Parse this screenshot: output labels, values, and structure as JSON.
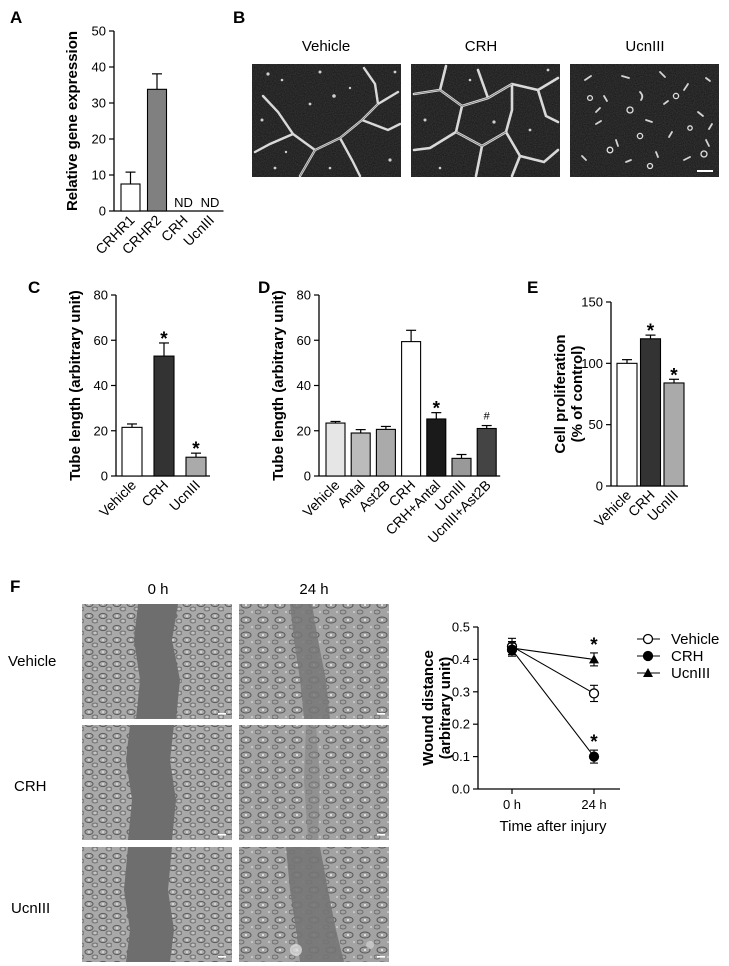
{
  "panels": {
    "A": {
      "letter": "A"
    },
    "B": {
      "letter": "B",
      "images": [
        "Vehicle",
        "CRH",
        "UcnIII"
      ]
    },
    "C": {
      "letter": "C"
    },
    "D": {
      "letter": "D"
    },
    "E": {
      "letter": "E"
    },
    "F": {
      "letter": "F",
      "columns": [
        "0 h",
        "24 h"
      ],
      "rows": [
        "Vehicle",
        "CRH",
        "UcnIII"
      ]
    }
  },
  "chart_data": [
    {
      "id": "A",
      "type": "bar",
      "ylabel": "Relative gene expression",
      "ylim": [
        0,
        50
      ],
      "yticks": [
        0,
        10,
        20,
        30,
        40,
        50
      ],
      "categories": [
        "CRHR1",
        "CRHR2",
        "CRH",
        "UcnIII"
      ],
      "values": [
        7.5,
        33.8,
        null,
        null
      ],
      "errors": [
        3.3,
        4.3,
        null,
        null
      ],
      "fills": [
        "#ffffff",
        "#808080",
        "#ffffff",
        "#ffffff"
      ],
      "annotations": [
        "",
        "",
        "ND",
        "ND"
      ]
    },
    {
      "id": "C",
      "type": "bar",
      "ylabel": "Tube length (arbitrary unit)",
      "ylim": [
        0,
        80
      ],
      "yticks": [
        0,
        20,
        40,
        60,
        80
      ],
      "categories": [
        "Vehicle",
        "CRH",
        "UcnIII"
      ],
      "values": [
        21.5,
        53.0,
        8.3
      ],
      "errors": [
        1.5,
        5.8,
        1.8
      ],
      "fills": [
        "#ffffff",
        "#333333",
        "#aaaaaa"
      ],
      "annotations": [
        "",
        "*",
        "*"
      ]
    },
    {
      "id": "D",
      "type": "bar",
      "ylabel": "Tube length (arbitrary unit)",
      "ylim": [
        0,
        80
      ],
      "yticks": [
        0,
        20,
        40,
        60,
        80
      ],
      "categories": [
        "Vehicle",
        "Antal",
        "Ast2B",
        "CRH",
        "CRH+Antal",
        "UcnIII",
        "UcnIII+Ast2B"
      ],
      "values": [
        23.4,
        19.0,
        20.6,
        59.4,
        25.2,
        7.8,
        21.0
      ],
      "errors": [
        0.7,
        1.5,
        1.3,
        5.0,
        2.8,
        1.7,
        1.3
      ],
      "fills": [
        "#e6e6e6",
        "#bbbbbb",
        "#aaaaaa",
        "#ffffff",
        "#1a1a1a",
        "#999999",
        "#444444"
      ],
      "annotations": [
        "",
        "",
        "",
        "",
        "*",
        "",
        "#"
      ]
    },
    {
      "id": "E",
      "type": "bar",
      "ylabel": "Cell proliferation (% of control)",
      "ylabel_lines": [
        "Cell proliferation",
        "(% of control)"
      ],
      "ylim": [
        0,
        150
      ],
      "yticks": [
        0,
        50,
        100,
        150
      ],
      "categories": [
        "Vehicle",
        "CRH",
        "UcnIII"
      ],
      "values": [
        100,
        120,
        84
      ],
      "errors": [
        3,
        3,
        3
      ],
      "fills": [
        "#ffffff",
        "#333333",
        "#aaaaaa"
      ],
      "annotations": [
        "",
        "*",
        "*"
      ]
    },
    {
      "id": "F",
      "type": "line",
      "ylabel": "Wound distance (arbitrary unit)",
      "ylabel_lines": [
        "Wound distance",
        "(arbitrary unit)"
      ],
      "xlabel": "Time after injury",
      "categories": [
        "0 h",
        "24 h"
      ],
      "ylim": [
        0,
        0.5
      ],
      "yticks": [
        0.0,
        0.1,
        0.2,
        0.3,
        0.4,
        0.5
      ],
      "legend": "right",
      "series": [
        {
          "name": "Vehicle",
          "marker": "circle-open",
          "values": [
            0.44,
            0.295
          ],
          "errors": [
            0.025,
            0.025
          ],
          "annotation": ""
        },
        {
          "name": "CRH",
          "marker": "circle-filled",
          "values": [
            0.43,
            0.1
          ],
          "errors": [
            0.02,
            0.02
          ],
          "annotation": "*"
        },
        {
          "name": "UcnIII",
          "marker": "triangle",
          "values": [
            0.435,
            0.4
          ],
          "errors": [
            0.02,
            0.02
          ],
          "annotation": "*"
        }
      ]
    }
  ]
}
